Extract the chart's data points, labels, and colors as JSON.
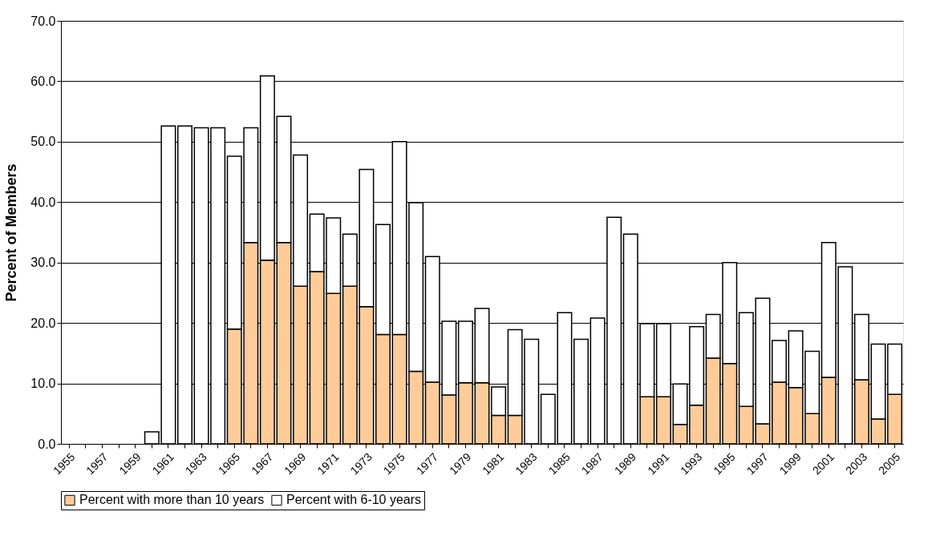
{
  "chart_data": {
    "type": "bar",
    "stacked": true,
    "ylabel": "Percent of Members",
    "categories": [
      "1955",
      null,
      "1957",
      null,
      "1959",
      null,
      "1961",
      null,
      "1963",
      null,
      "1965",
      null,
      "1967",
      null,
      "1969",
      null,
      "1971",
      null,
      "1973",
      null,
      "1975",
      null,
      "1977",
      null,
      "1979",
      null,
      "1981",
      null,
      "1983",
      null,
      "1985",
      null,
      "1987",
      null,
      "1989",
      null,
      "1991",
      null,
      "1993",
      null,
      "1995",
      null,
      "1997",
      null,
      "1999",
      null,
      "2001",
      null,
      "2003",
      null,
      "2005"
    ],
    "series": [
      {
        "name": "Percent with more than 10 years",
        "color": "#ffcc99",
        "values": [
          null,
          null,
          null,
          null,
          null,
          null,
          null,
          null,
          null,
          null,
          19.0,
          33.3,
          30.4,
          33.3,
          26.1,
          28.5,
          24.9,
          26.1,
          22.7,
          18.1,
          18.1,
          12.0,
          10.2,
          8.1,
          10.1,
          10.1,
          4.7,
          4.7,
          null,
          null,
          null,
          null,
          null,
          null,
          null,
          7.8,
          7.8,
          3.2,
          6.4,
          14.2,
          13.3,
          6.2,
          3.3,
          10.2,
          9.3,
          5.0,
          11.0,
          null,
          10.6,
          4.1,
          8.2
        ]
      },
      {
        "name": "Percent with 6-10 years",
        "color": "#ffffff",
        "values": [
          null,
          null,
          null,
          null,
          null,
          2.0,
          52.6,
          52.6,
          52.3,
          52.3,
          28.6,
          19.0,
          30.5,
          20.9,
          21.7,
          9.5,
          12.5,
          8.6,
          22.7,
          18.2,
          31.9,
          27.9,
          20.8,
          12.2,
          10.2,
          12.3,
          4.7,
          14.2,
          17.3,
          8.2,
          21.7,
          17.3,
          20.8,
          37.5,
          34.7,
          12.1,
          12.1,
          6.7,
          13.0,
          7.2,
          16.7,
          15.5,
          20.8,
          6.9,
          9.4,
          10.3,
          22.3,
          29.3,
          10.8,
          12.4,
          8.3
        ]
      }
    ],
    "ylim": [
      0,
      70
    ],
    "yticks": [
      {
        "value": 0,
        "label": "0.0"
      },
      {
        "value": 10,
        "label": "10.0"
      },
      {
        "value": 20,
        "label": "20.0"
      },
      {
        "value": 30,
        "label": "30.0"
      },
      {
        "value": 40,
        "label": "40.0"
      },
      {
        "value": 50,
        "label": "50.0"
      },
      {
        "value": 60,
        "label": "60.0"
      },
      {
        "value": 70,
        "label": "70.0"
      }
    ],
    "grid": "y",
    "legend": "bottom"
  }
}
